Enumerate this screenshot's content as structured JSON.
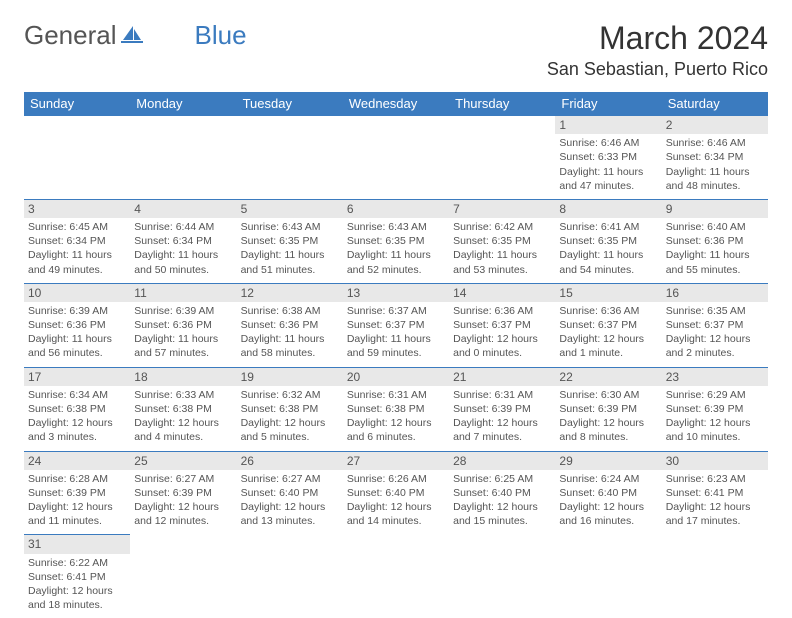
{
  "logo": {
    "text1": "General",
    "text2": "Blue"
  },
  "title": "March 2024",
  "location": "San Sebastian, Puerto Rico",
  "columns": [
    "Sunday",
    "Monday",
    "Tuesday",
    "Wednesday",
    "Thursday",
    "Friday",
    "Saturday"
  ],
  "colors": {
    "header_bg": "#3b7bbf",
    "header_text": "#ffffff",
    "daynum_bg": "#e8e8e8",
    "border": "#3b7bbf",
    "logo_blue": "#3b7bbf"
  },
  "layout": {
    "cols": 7,
    "rows": 6,
    "first_day_col": 5
  },
  "days": [
    {
      "n": "1",
      "sr": "6:46 AM",
      "ss": "6:33 PM",
      "dl": "11 hours and 47 minutes."
    },
    {
      "n": "2",
      "sr": "6:46 AM",
      "ss": "6:34 PM",
      "dl": "11 hours and 48 minutes."
    },
    {
      "n": "3",
      "sr": "6:45 AM",
      "ss": "6:34 PM",
      "dl": "11 hours and 49 minutes."
    },
    {
      "n": "4",
      "sr": "6:44 AM",
      "ss": "6:34 PM",
      "dl": "11 hours and 50 minutes."
    },
    {
      "n": "5",
      "sr": "6:43 AM",
      "ss": "6:35 PM",
      "dl": "11 hours and 51 minutes."
    },
    {
      "n": "6",
      "sr": "6:43 AM",
      "ss": "6:35 PM",
      "dl": "11 hours and 52 minutes."
    },
    {
      "n": "7",
      "sr": "6:42 AM",
      "ss": "6:35 PM",
      "dl": "11 hours and 53 minutes."
    },
    {
      "n": "8",
      "sr": "6:41 AM",
      "ss": "6:35 PM",
      "dl": "11 hours and 54 minutes."
    },
    {
      "n": "9",
      "sr": "6:40 AM",
      "ss": "6:36 PM",
      "dl": "11 hours and 55 minutes."
    },
    {
      "n": "10",
      "sr": "6:39 AM",
      "ss": "6:36 PM",
      "dl": "11 hours and 56 minutes."
    },
    {
      "n": "11",
      "sr": "6:39 AM",
      "ss": "6:36 PM",
      "dl": "11 hours and 57 minutes."
    },
    {
      "n": "12",
      "sr": "6:38 AM",
      "ss": "6:36 PM",
      "dl": "11 hours and 58 minutes."
    },
    {
      "n": "13",
      "sr": "6:37 AM",
      "ss": "6:37 PM",
      "dl": "11 hours and 59 minutes."
    },
    {
      "n": "14",
      "sr": "6:36 AM",
      "ss": "6:37 PM",
      "dl": "12 hours and 0 minutes."
    },
    {
      "n": "15",
      "sr": "6:36 AM",
      "ss": "6:37 PM",
      "dl": "12 hours and 1 minute."
    },
    {
      "n": "16",
      "sr": "6:35 AM",
      "ss": "6:37 PM",
      "dl": "12 hours and 2 minutes."
    },
    {
      "n": "17",
      "sr": "6:34 AM",
      "ss": "6:38 PM",
      "dl": "12 hours and 3 minutes."
    },
    {
      "n": "18",
      "sr": "6:33 AM",
      "ss": "6:38 PM",
      "dl": "12 hours and 4 minutes."
    },
    {
      "n": "19",
      "sr": "6:32 AM",
      "ss": "6:38 PM",
      "dl": "12 hours and 5 minutes."
    },
    {
      "n": "20",
      "sr": "6:31 AM",
      "ss": "6:38 PM",
      "dl": "12 hours and 6 minutes."
    },
    {
      "n": "21",
      "sr": "6:31 AM",
      "ss": "6:39 PM",
      "dl": "12 hours and 7 minutes."
    },
    {
      "n": "22",
      "sr": "6:30 AM",
      "ss": "6:39 PM",
      "dl": "12 hours and 8 minutes."
    },
    {
      "n": "23",
      "sr": "6:29 AM",
      "ss": "6:39 PM",
      "dl": "12 hours and 10 minutes."
    },
    {
      "n": "24",
      "sr": "6:28 AM",
      "ss": "6:39 PM",
      "dl": "12 hours and 11 minutes."
    },
    {
      "n": "25",
      "sr": "6:27 AM",
      "ss": "6:39 PM",
      "dl": "12 hours and 12 minutes."
    },
    {
      "n": "26",
      "sr": "6:27 AM",
      "ss": "6:40 PM",
      "dl": "12 hours and 13 minutes."
    },
    {
      "n": "27",
      "sr": "6:26 AM",
      "ss": "6:40 PM",
      "dl": "12 hours and 14 minutes."
    },
    {
      "n": "28",
      "sr": "6:25 AM",
      "ss": "6:40 PM",
      "dl": "12 hours and 15 minutes."
    },
    {
      "n": "29",
      "sr": "6:24 AM",
      "ss": "6:40 PM",
      "dl": "12 hours and 16 minutes."
    },
    {
      "n": "30",
      "sr": "6:23 AM",
      "ss": "6:41 PM",
      "dl": "12 hours and 17 minutes."
    },
    {
      "n": "31",
      "sr": "6:22 AM",
      "ss": "6:41 PM",
      "dl": "12 hours and 18 minutes."
    }
  ],
  "labels": {
    "sunrise": "Sunrise:",
    "sunset": "Sunset:",
    "daylight": "Daylight:"
  }
}
